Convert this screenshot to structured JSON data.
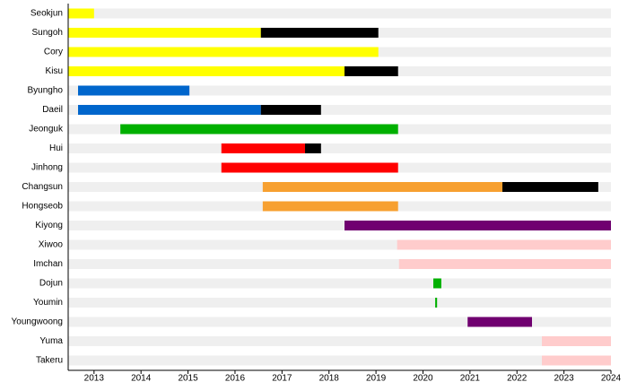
{
  "chart_data": {
    "type": "timeline",
    "xlim": [
      2012.45,
      2024
    ],
    "xticks": [
      2013,
      2014,
      2015,
      2016,
      2017,
      2018,
      2019,
      2020,
      2021,
      2022,
      2023,
      2024
    ],
    "background_color": "#efefef",
    "rows": [
      {
        "name": "Seokjun",
        "segments": [
          {
            "start": 2012.45,
            "end": 2013.0,
            "color": "#ffff00"
          }
        ]
      },
      {
        "name": "Sungoh",
        "segments": [
          {
            "start": 2012.45,
            "end": 2016.55,
            "color": "#ffff00"
          },
          {
            "start": 2016.55,
            "end": 2019.05,
            "color": "#000000"
          }
        ]
      },
      {
        "name": "Cory",
        "segments": [
          {
            "start": 2012.45,
            "end": 2019.05,
            "color": "#ffff00"
          }
        ]
      },
      {
        "name": "Kisu",
        "segments": [
          {
            "start": 2012.45,
            "end": 2018.33,
            "color": "#ffff00"
          },
          {
            "start": 2018.33,
            "end": 2019.47,
            "color": "#000000"
          }
        ]
      },
      {
        "name": "Byungho",
        "segments": [
          {
            "start": 2012.66,
            "end": 2015.03,
            "color": "#0066cc"
          }
        ]
      },
      {
        "name": "Daeil",
        "segments": [
          {
            "start": 2012.66,
            "end": 2016.55,
            "color": "#0066cc"
          },
          {
            "start": 2016.55,
            "end": 2017.83,
            "color": "#000000"
          }
        ]
      },
      {
        "name": "Jeonguk",
        "segments": [
          {
            "start": 2013.56,
            "end": 2019.47,
            "color": "#00b000"
          }
        ]
      },
      {
        "name": "Hui",
        "segments": [
          {
            "start": 2015.71,
            "end": 2017.49,
            "color": "#ff0000"
          },
          {
            "start": 2017.49,
            "end": 2017.83,
            "color": "#000000"
          }
        ]
      },
      {
        "name": "Jinhong",
        "segments": [
          {
            "start": 2015.71,
            "end": 2019.47,
            "color": "#ff0000"
          }
        ]
      },
      {
        "name": "Changsun",
        "segments": [
          {
            "start": 2016.59,
            "end": 2021.69,
            "color": "#f7a030"
          },
          {
            "start": 2021.69,
            "end": 2023.73,
            "color": "#000000"
          }
        ]
      },
      {
        "name": "Hongseob",
        "segments": [
          {
            "start": 2016.59,
            "end": 2019.47,
            "color": "#f7a030"
          }
        ]
      },
      {
        "name": "Kiyong",
        "segments": [
          {
            "start": 2018.33,
            "end": 2024,
            "color": "#700070"
          }
        ]
      },
      {
        "name": "Xiwoo",
        "segments": [
          {
            "start": 2019.45,
            "end": 2024,
            "color": "#ffcccc"
          }
        ]
      },
      {
        "name": "Imchan",
        "segments": [
          {
            "start": 2019.49,
            "end": 2024,
            "color": "#ffcccc"
          }
        ]
      },
      {
        "name": "Dojun",
        "segments": [
          {
            "start": 2020.22,
            "end": 2020.39,
            "color": "#00b000"
          }
        ]
      },
      {
        "name": "Youmin",
        "segments": [
          {
            "start": 2020.26,
            "end": 2020.3,
            "color": "#00b000"
          }
        ]
      },
      {
        "name": "Youngwoong",
        "segments": [
          {
            "start": 2020.95,
            "end": 2022.32,
            "color": "#700070"
          }
        ]
      },
      {
        "name": "Yuma",
        "segments": [
          {
            "start": 2022.53,
            "end": 2024,
            "color": "#ffcccc"
          }
        ]
      },
      {
        "name": "Takeru",
        "segments": [
          {
            "start": 2022.53,
            "end": 2024,
            "color": "#ffcccc"
          }
        ]
      }
    ]
  }
}
